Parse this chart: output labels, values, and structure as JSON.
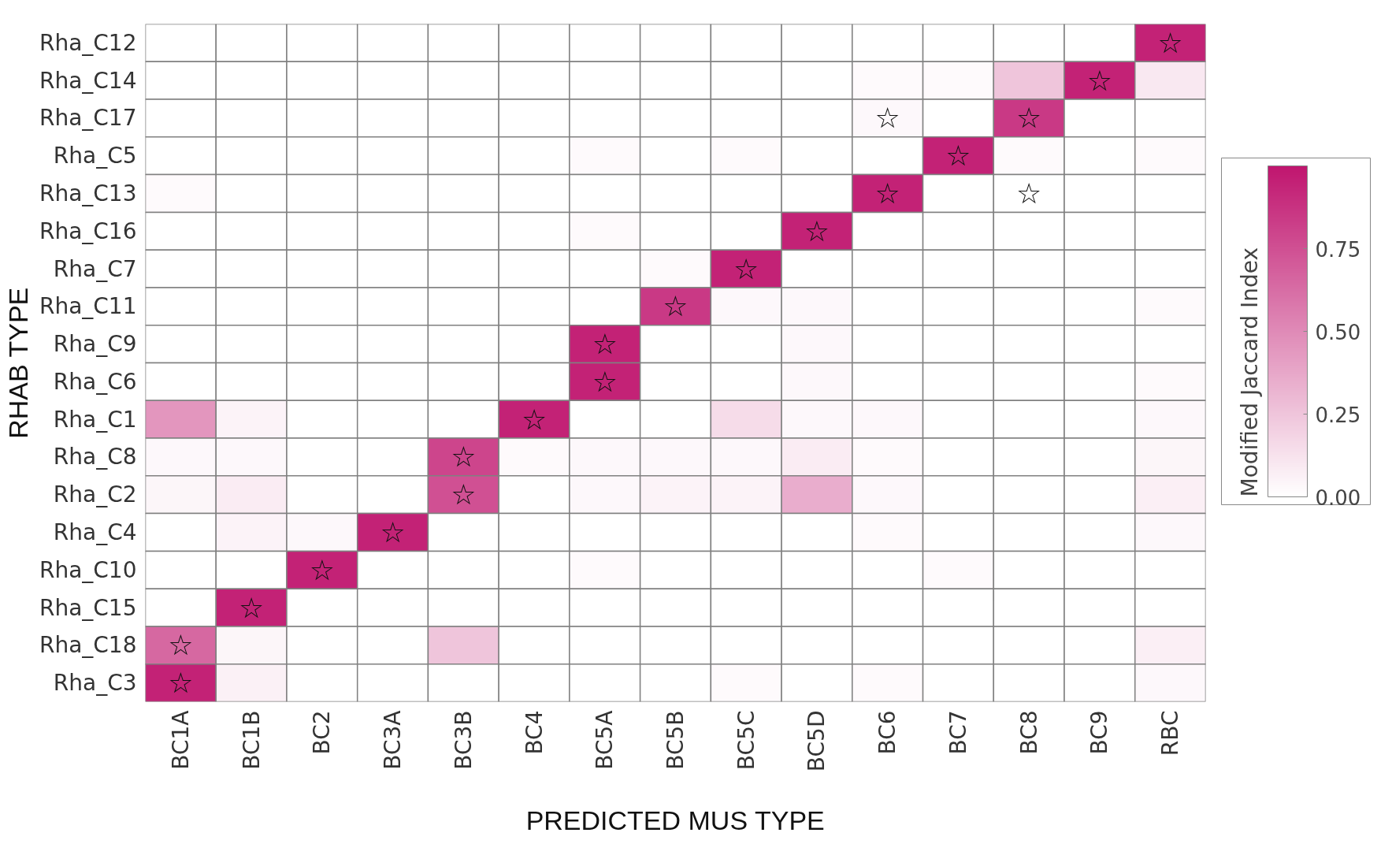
{
  "chart_data": {
    "type": "heatmap",
    "xlabel": "PREDICTED MUS TYPE",
    "ylabel": "RHAB TYPE",
    "clabel": "Modified Jaccard Index",
    "categories": [
      "BC1A",
      "BC1B",
      "BC2",
      "BC3A",
      "BC3B",
      "BC4",
      "BC5A",
      "BC5B",
      "BC5C",
      "BC5D",
      "BC6",
      "BC7",
      "BC8",
      "BC9",
      "RBC"
    ],
    "y_categories": [
      "Rha_C12",
      "Rha_C14",
      "Rha_C17",
      "Rha_C5",
      "Rha_C13",
      "Rha_C16",
      "Rha_C7",
      "Rha_C11",
      "Rha_C9",
      "Rha_C6",
      "Rha_C1",
      "Rha_C8",
      "Rha_C2",
      "Rha_C4",
      "Rha_C10",
      "Rha_C15",
      "Rha_C18",
      "Rha_C3"
    ],
    "cells": [
      [
        0,
        0,
        0,
        0,
        0,
        0,
        0,
        0,
        0,
        0,
        0,
        0,
        0,
        0,
        0.95
      ],
      [
        0,
        0,
        0,
        0,
        0,
        0,
        0,
        0,
        0,
        0,
        0.02,
        0.02,
        0.25,
        0.95,
        0.1
      ],
      [
        0,
        0,
        0,
        0,
        0,
        0,
        0,
        0,
        0,
        0,
        0.03,
        0,
        0.85,
        0,
        0
      ],
      [
        0,
        0,
        0,
        0,
        0,
        0,
        0.02,
        0,
        0.02,
        0,
        0,
        0.95,
        0.02,
        0,
        0.02
      ],
      [
        0.02,
        0,
        0,
        0,
        0,
        0,
        0,
        0,
        0,
        0,
        0.95,
        0,
        0,
        0,
        0
      ],
      [
        0,
        0,
        0,
        0,
        0,
        0,
        0.02,
        0,
        0,
        0.95,
        0,
        0,
        0,
        0,
        0
      ],
      [
        0,
        0,
        0,
        0,
        0,
        0,
        0,
        0.02,
        0.95,
        0,
        0,
        0,
        0,
        0,
        0
      ],
      [
        0,
        0,
        0,
        0,
        0,
        0,
        0,
        0.85,
        0.03,
        0.03,
        0,
        0,
        0,
        0,
        0.02
      ],
      [
        0,
        0,
        0,
        0,
        0,
        0,
        0.95,
        0,
        0,
        0.03,
        0,
        0,
        0,
        0,
        0
      ],
      [
        0,
        0,
        0,
        0,
        0,
        0,
        0.95,
        0,
        0,
        0.03,
        0,
        0,
        0,
        0,
        0.02
      ],
      [
        0.45,
        0.05,
        0,
        0,
        0,
        0.95,
        0,
        0,
        0.15,
        0.03,
        0.03,
        0,
        0,
        0,
        0.03
      ],
      [
        0.03,
        0.03,
        0,
        0,
        0.8,
        0.02,
        0.03,
        0.03,
        0.03,
        0.08,
        0.02,
        0,
        0,
        0,
        0.04
      ],
      [
        0.04,
        0.08,
        0,
        0,
        0.75,
        0,
        0.03,
        0.05,
        0.05,
        0.35,
        0.03,
        0,
        0,
        0,
        0.07
      ],
      [
        0,
        0.05,
        0.03,
        0.95,
        0,
        0,
        0,
        0,
        0,
        0,
        0.02,
        0,
        0,
        0,
        0.03
      ],
      [
        0,
        0,
        0.95,
        0,
        0,
        0,
        0.02,
        0,
        0,
        0,
        0,
        0.02,
        0,
        0,
        0
      ],
      [
        0,
        0.95,
        0,
        0,
        0,
        0,
        0,
        0,
        0,
        0,
        0,
        0,
        0,
        0,
        0
      ],
      [
        0.65,
        0.04,
        0,
        0,
        0.25,
        0,
        0,
        0,
        0,
        0,
        0,
        0,
        0,
        0,
        0.07
      ],
      [
        0.95,
        0.06,
        0,
        0,
        0,
        0,
        0,
        0,
        0.02,
        0,
        0.02,
        0,
        0,
        0,
        0.03
      ]
    ],
    "cell_labels": [
      [
        null,
        null,
        null,
        null,
        null,
        null,
        null,
        null,
        null,
        null,
        null,
        null,
        null,
        null,
        "☆"
      ],
      [
        null,
        null,
        null,
        null,
        null,
        null,
        null,
        null,
        null,
        null,
        null,
        null,
        null,
        "☆",
        null
      ],
      [
        null,
        null,
        null,
        null,
        null,
        null,
        null,
        null,
        null,
        null,
        "☆",
        null,
        "☆",
        null,
        null
      ],
      [
        null,
        null,
        null,
        null,
        null,
        null,
        null,
        null,
        null,
        null,
        null,
        "☆",
        null,
        null,
        null
      ],
      [
        null,
        null,
        null,
        null,
        null,
        null,
        null,
        null,
        null,
        null,
        "☆",
        null,
        "☆",
        null,
        null
      ],
      [
        null,
        null,
        null,
        null,
        null,
        null,
        null,
        null,
        null,
        "☆",
        null,
        null,
        null,
        null,
        null
      ],
      [
        null,
        null,
        null,
        null,
        null,
        null,
        null,
        null,
        "☆",
        null,
        null,
        null,
        null,
        null,
        null
      ],
      [
        null,
        null,
        null,
        null,
        null,
        null,
        null,
        "☆",
        null,
        null,
        null,
        null,
        null,
        null,
        null
      ],
      [
        null,
        null,
        null,
        null,
        null,
        null,
        "☆",
        null,
        null,
        null,
        null,
        null,
        null,
        null,
        null
      ],
      [
        null,
        null,
        null,
        null,
        null,
        null,
        "☆",
        null,
        null,
        null,
        null,
        null,
        null,
        null,
        null
      ],
      [
        null,
        null,
        null,
        null,
        null,
        "☆",
        null,
        null,
        null,
        null,
        null,
        null,
        null,
        null,
        null
      ],
      [
        null,
        null,
        null,
        null,
        "☆",
        null,
        null,
        null,
        null,
        null,
        null,
        null,
        null,
        null,
        null
      ],
      [
        null,
        null,
        null,
        null,
        "☆",
        null,
        null,
        null,
        null,
        null,
        null,
        null,
        null,
        null,
        null
      ],
      [
        null,
        null,
        null,
        "☆",
        null,
        null,
        null,
        null,
        null,
        null,
        null,
        null,
        null,
        null,
        null
      ],
      [
        null,
        null,
        "☆",
        null,
        null,
        null,
        null,
        null,
        null,
        null,
        null,
        null,
        null,
        null,
        null
      ],
      [
        null,
        "☆",
        null,
        null,
        null,
        null,
        null,
        null,
        null,
        null,
        null,
        null,
        null,
        null,
        null
      ],
      [
        "☆",
        null,
        null,
        null,
        null,
        null,
        null,
        null,
        null,
        null,
        null,
        null,
        null,
        null,
        null
      ],
      [
        "☆",
        null,
        null,
        null,
        null,
        null,
        null,
        null,
        null,
        null,
        null,
        null,
        null,
        null,
        null
      ]
    ],
    "clim": [
      0,
      1
    ],
    "cticks": [
      {
        "value": 0,
        "label": "0.00"
      },
      {
        "value": 0.25,
        "label": "0.25"
      },
      {
        "value": 0.5,
        "label": "0.50"
      },
      {
        "value": 0.75,
        "label": "0.75"
      }
    ]
  }
}
